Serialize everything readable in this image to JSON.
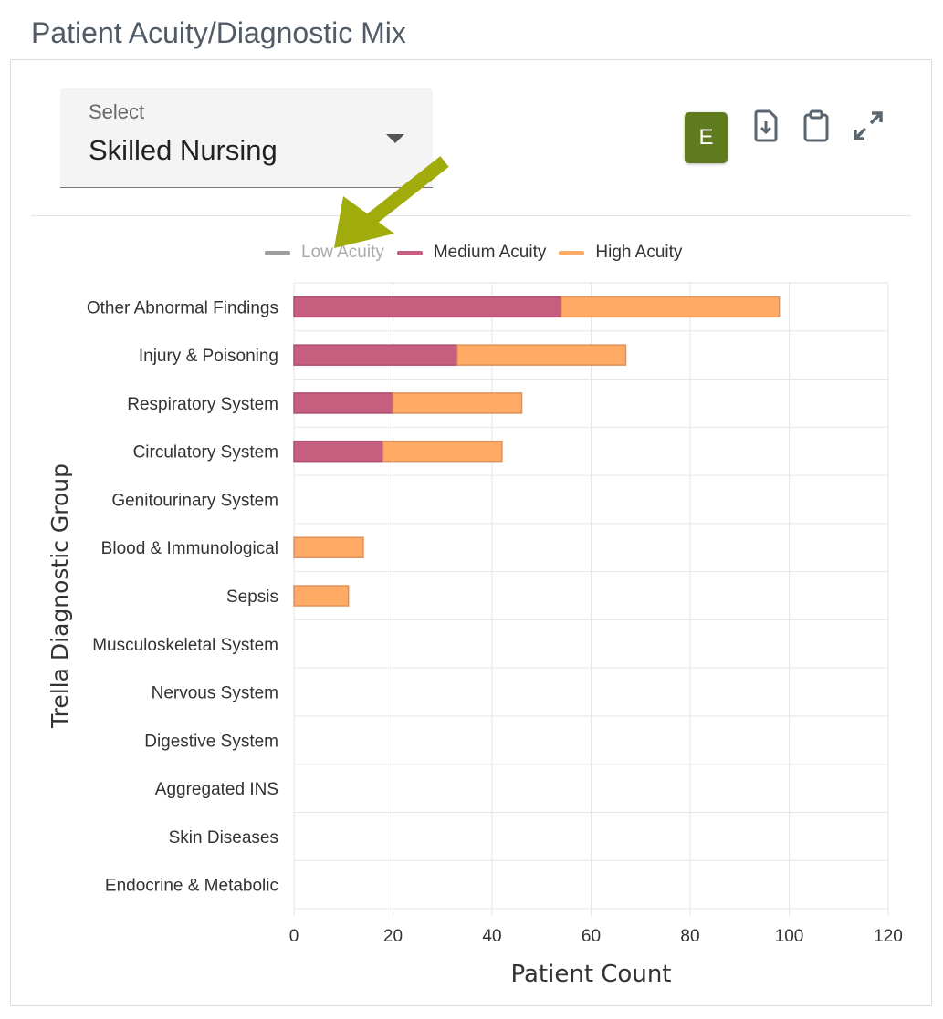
{
  "title": "Patient Acuity/Diagnostic Mix",
  "select": {
    "label": "Select",
    "value": "Skilled Nursing"
  },
  "toolbar": {
    "e_label": "E",
    "icons": [
      "file-download-icon",
      "clipboard-icon",
      "expand-icon"
    ]
  },
  "colors": {
    "low": "#9e9e9e",
    "medium": "#c55e7f",
    "high": "#ffab66",
    "accent": "#5f7b1e",
    "arrow": "#a0ab0c"
  },
  "chart_data": {
    "type": "bar",
    "orientation": "horizontal",
    "stacked": true,
    "xlabel": "Patient Count",
    "ylabel": "Trella Diagnostic Group",
    "xlim": [
      0,
      120
    ],
    "xticks": [
      0,
      20,
      40,
      60,
      80,
      100,
      120
    ],
    "grid": true,
    "legend": "top",
    "categories": [
      "Other Abnormal Findings",
      "Injury & Poisoning",
      "Respiratory System",
      "Circulatory System",
      "Genitourinary System",
      "Blood & Immunological",
      "Sepsis",
      "Musculoskeletal System",
      "Nervous System",
      "Digestive System",
      "Aggregated INS",
      "Skin Diseases",
      "Endocrine & Metabolic"
    ],
    "series": [
      {
        "name": "Low Acuity",
        "hidden": true,
        "values": [
          0,
          0,
          0,
          0,
          0,
          0,
          0,
          0,
          0,
          0,
          0,
          0,
          0
        ]
      },
      {
        "name": "Medium Acuity",
        "values": [
          54,
          33,
          20,
          18,
          0,
          0,
          0,
          0,
          0,
          0,
          0,
          0,
          0
        ]
      },
      {
        "name": "High Acuity",
        "values": [
          44,
          34,
          26,
          24,
          0,
          14,
          11,
          0,
          0,
          0,
          0,
          0,
          0
        ]
      }
    ]
  }
}
